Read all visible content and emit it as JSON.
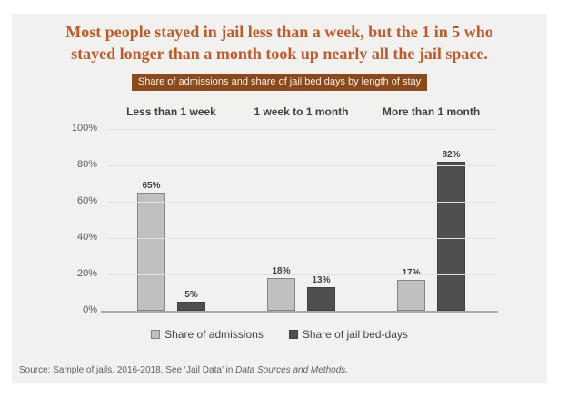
{
  "title": {
    "lines": [
      "Most people stayed in jail less than a week, but the 1 in 5 who",
      "stayed longer than a month took up nearly all the jail space."
    ],
    "color": "#c05a28"
  },
  "subtitle": {
    "text": "Share of admissions and share of jail bed days by length of stay",
    "background": "#8b4a1b",
    "text_color": "#f7f1ea"
  },
  "chart_data": {
    "type": "bar",
    "categories": [
      "Less than 1 week",
      "1 week to 1 month",
      "More than 1 month"
    ],
    "series": [
      {
        "name": "Share of admissions",
        "values": [
          65,
          18,
          17
        ],
        "labels": [
          "65%",
          "18%",
          "17%"
        ],
        "color": "#c0c0c0",
        "border": "#848484"
      },
      {
        "name": "Share of jail bed-days",
        "values": [
          5,
          13,
          82
        ],
        "labels": [
          "5%",
          "13%",
          "82%"
        ],
        "color": "#4f4f4f",
        "border": "#404040"
      }
    ],
    "y_axis": {
      "ticks": [
        {
          "label": "100%",
          "value": 100
        },
        {
          "label": "80%",
          "value": 80
        },
        {
          "label": "60%",
          "value": 60
        },
        {
          "label": "40%",
          "value": 40
        },
        {
          "label": "20%",
          "value": 20
        },
        {
          "label": "0%",
          "value": 0
        }
      ],
      "ylim": [
        0,
        100
      ]
    },
    "grid": true,
    "legend_position": "bottom"
  },
  "source": {
    "prefix": "Source: Sample of jails, 2016-2018. See ‘Jail Data’ in ",
    "italic": "Data Sources and Methods."
  }
}
